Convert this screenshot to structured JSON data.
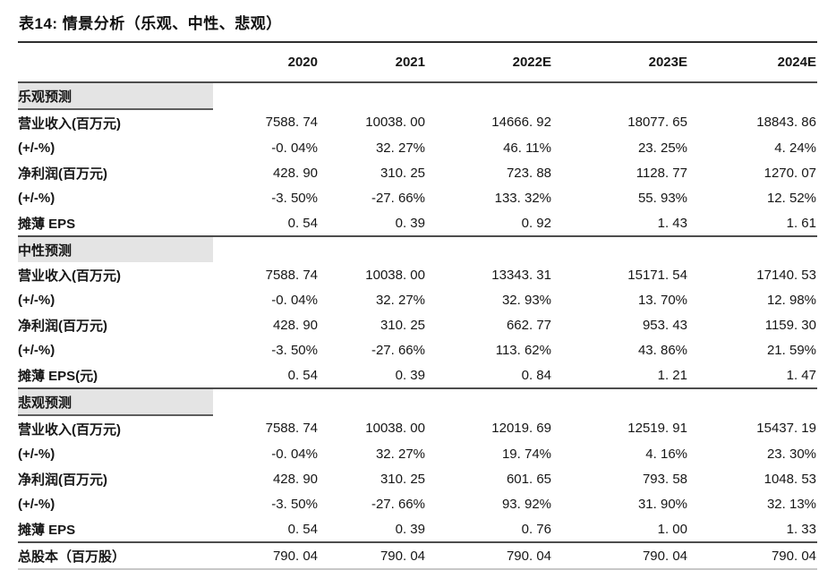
{
  "title": "表14: 情景分析（乐观、中性、悲观）",
  "table": {
    "columns": [
      "2020",
      "2021",
      "2022E",
      "2023E",
      "2024E"
    ],
    "sections": [
      {
        "name": "乐观预测",
        "underline": true,
        "rows": [
          {
            "label": "营业收入(百万元)",
            "values": [
              "7588. 74",
              "10038. 00",
              "14666. 92",
              "18077. 65",
              "18843. 86"
            ]
          },
          {
            "label": "(+/-%)",
            "values": [
              "-0. 04%",
              "32. 27%",
              "46. 11%",
              "23. 25%",
              "4. 24%"
            ]
          },
          {
            "label": "净利润(百万元)",
            "values": [
              "428. 90",
              "310. 25",
              "723. 88",
              "1128. 77",
              "1270. 07"
            ]
          },
          {
            "label": "(+/-%)",
            "values": [
              "-3. 50%",
              "-27. 66%",
              "133. 32%",
              "55. 93%",
              "12. 52%"
            ]
          },
          {
            "label": "摊薄 EPS",
            "values": [
              "0. 54",
              "0. 39",
              "0. 92",
              "1. 43",
              "1. 61"
            ]
          }
        ]
      },
      {
        "name": "中性预测",
        "underline": false,
        "rows": [
          {
            "label": "营业收入(百万元)",
            "values": [
              "7588. 74",
              "10038. 00",
              "13343. 31",
              "15171. 54",
              "17140. 53"
            ]
          },
          {
            "label": "(+/-%)",
            "values": [
              "-0. 04%",
              "32. 27%",
              "32. 93%",
              "13. 70%",
              "12. 98%"
            ]
          },
          {
            "label": "净利润(百万元)",
            "values": [
              "428. 90",
              "310. 25",
              "662. 77",
              "953. 43",
              "1159. 30"
            ]
          },
          {
            "label": "(+/-%)",
            "values": [
              "-3. 50%",
              "-27. 66%",
              "113. 62%",
              "43. 86%",
              "21. 59%"
            ]
          },
          {
            "label": "摊薄 EPS(元)",
            "values": [
              "0. 54",
              "0. 39",
              "0. 84",
              "1. 21",
              "1. 47"
            ]
          }
        ]
      },
      {
        "name": "悲观预测",
        "underline": true,
        "rows": [
          {
            "label": "营业收入(百万元)",
            "values": [
              "7588. 74",
              "10038. 00",
              "12019. 69",
              "12519. 91",
              "15437. 19"
            ]
          },
          {
            "label": "(+/-%)",
            "values": [
              "-0. 04%",
              "32. 27%",
              "19. 74%",
              "4. 16%",
              "23. 30%"
            ]
          },
          {
            "label": "净利润(百万元)",
            "values": [
              "428. 90",
              "310. 25",
              "601. 65",
              "793. 58",
              "1048. 53"
            ]
          },
          {
            "label": "(+/-%)",
            "values": [
              "-3. 50%",
              "-27. 66%",
              "93. 92%",
              "31. 90%",
              "32. 13%"
            ]
          },
          {
            "label": "摊薄 EPS",
            "values": [
              "0. 54",
              "0. 39",
              "0. 76",
              "1. 00",
              "1. 33"
            ]
          }
        ]
      }
    ],
    "total_row": {
      "label": "总股本（百万股）",
      "values": [
        "790. 04",
        "790. 04",
        "790. 04",
        "790. 04",
        "790. 04"
      ]
    }
  },
  "colors": {
    "section_bar_bg": "#e4e4e4",
    "rule_dark": "#4d4d4d",
    "rule_light": "#c8c8c8",
    "text": "#161616"
  }
}
